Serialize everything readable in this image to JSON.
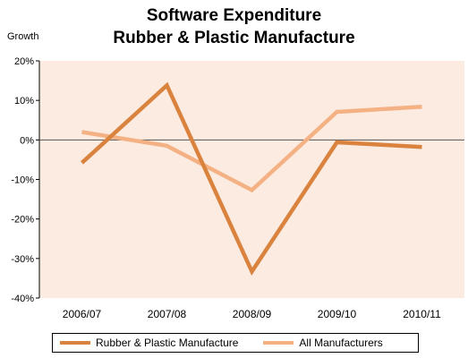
{
  "chart_data": {
    "type": "line",
    "title_line1": "Software Expenditure",
    "title_line2": "Rubber & Plastic Manufacture",
    "ylabel": "Growth",
    "categories": [
      "2006/07",
      "2007/08",
      "2008/09",
      "2009/10",
      "2010/11"
    ],
    "ylim": [
      -40,
      20
    ],
    "yticks": [
      20,
      10,
      0,
      -10,
      -20,
      -30,
      -40
    ],
    "ytick_labels": [
      "20%",
      "10%",
      "0%",
      "-10%",
      "-20%",
      "-30%",
      "-40%"
    ],
    "series": [
      {
        "name": "Rubber & Plastic Manufacture",
        "color": "#D9833F",
        "values": [
          -5.8,
          13.8,
          -33.3,
          -0.6,
          -1.8
        ]
      },
      {
        "name": "All Manufacturers",
        "color": "#F4B183",
        "values": [
          2.0,
          -1.5,
          -12.7,
          7.1,
          8.4
        ]
      }
    ],
    "plot_background": "#FCEBE1",
    "zero_line": true,
    "legend_position": "bottom"
  }
}
